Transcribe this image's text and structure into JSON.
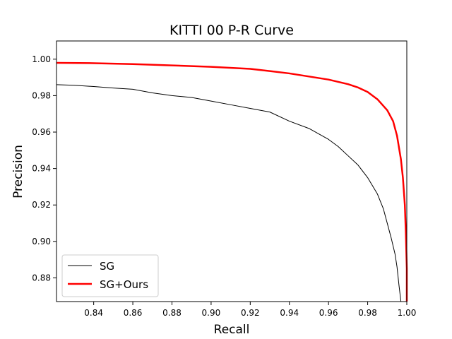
{
  "chart_data": {
    "type": "line",
    "title": "KITTI 00 P-R Curve",
    "xlabel": "Recall",
    "ylabel": "Precision",
    "xlim": [
      0.821,
      1.0
    ],
    "ylim": [
      0.867,
      1.01
    ],
    "xticks": [
      "0.84",
      "0.86",
      "0.88",
      "0.90",
      "0.92",
      "0.94",
      "0.96",
      "0.98",
      "1.00"
    ],
    "yticks": [
      "0.88",
      "0.90",
      "0.92",
      "0.94",
      "0.96",
      "0.98",
      "1.00"
    ],
    "grid": false,
    "legend_position": "lower-left",
    "series": [
      {
        "name": "SG",
        "color": "#000000",
        "x": [
          0.821,
          0.83,
          0.84,
          0.85,
          0.86,
          0.87,
          0.88,
          0.89,
          0.9,
          0.91,
          0.92,
          0.93,
          0.94,
          0.95,
          0.96,
          0.965,
          0.97,
          0.975,
          0.98,
          0.985,
          0.988,
          0.99,
          0.992,
          0.994,
          0.995,
          0.996,
          0.997
        ],
        "y": [
          0.986,
          0.9857,
          0.985,
          0.9842,
          0.9835,
          0.9815,
          0.98,
          0.979,
          0.977,
          0.975,
          0.973,
          0.971,
          0.966,
          0.962,
          0.956,
          0.952,
          0.947,
          0.942,
          0.935,
          0.926,
          0.918,
          0.91,
          0.902,
          0.893,
          0.886,
          0.876,
          0.867
        ]
      },
      {
        "name": "SG+Ours",
        "color": "#ff0000",
        "x": [
          0.821,
          0.84,
          0.86,
          0.88,
          0.9,
          0.92,
          0.93,
          0.94,
          0.95,
          0.96,
          0.97,
          0.975,
          0.98,
          0.985,
          0.99,
          0.993,
          0.995,
          0.997,
          0.998,
          0.999,
          0.9995,
          1.0,
          1.0
        ],
        "y": [
          0.998,
          0.9978,
          0.9973,
          0.9966,
          0.9958,
          0.9947,
          0.9935,
          0.9922,
          0.9905,
          0.9888,
          0.9863,
          0.9845,
          0.982,
          0.978,
          0.972,
          0.966,
          0.958,
          0.945,
          0.935,
          0.92,
          0.905,
          0.885,
          0.867
        ]
      }
    ]
  }
}
